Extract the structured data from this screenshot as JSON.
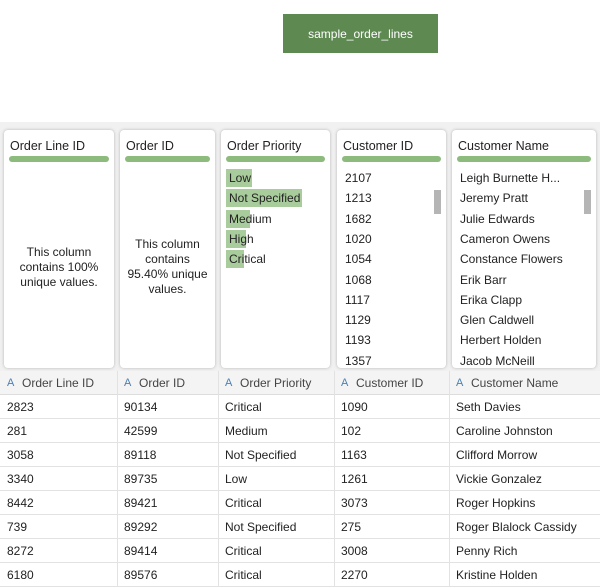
{
  "header": {
    "button": "sample_order_lines"
  },
  "profiles": [
    {
      "title": "Order Line ID",
      "text": "This column contains 100% unique values."
    },
    {
      "title": "Order ID",
      "text": "This column contains 95.40% unique values."
    },
    {
      "title": "Order Priority",
      "items": [
        "Low",
        "Not Specified",
        "Medium",
        "High",
        "Critical"
      ]
    },
    {
      "title": "Customer ID",
      "items": [
        "2107",
        "1213",
        "1682",
        "1020",
        "1054",
        "1068",
        "1117",
        "1129",
        "1193",
        "1357"
      ]
    },
    {
      "title": "Customer Name",
      "items": [
        "Leigh Burnette H...",
        "Jeremy Pratt",
        "Julie Edwards",
        "Cameron Owens",
        "Constance Flowers",
        "Erik Barr",
        "Erika Clapp",
        "Glen Caldwell",
        "Herbert Holden",
        "Jacob McNeill"
      ]
    }
  ],
  "table": {
    "columns": [
      {
        "type": "A",
        "name": "Order Line ID"
      },
      {
        "type": "A",
        "name": "Order ID"
      },
      {
        "type": "A",
        "name": "Order Priority"
      },
      {
        "type": "A",
        "name": "Customer ID"
      },
      {
        "type": "A",
        "name": "Customer Name"
      }
    ],
    "rows": [
      [
        "2823",
        "90134",
        "Critical",
        "1090",
        "Seth Davies"
      ],
      [
        "281",
        "42599",
        "Medium",
        "102",
        "Caroline Johnston"
      ],
      [
        "3058",
        "89118",
        "Not Specified",
        "1163",
        "Clifford Morrow"
      ],
      [
        "3340",
        "89735",
        "Low",
        "1261",
        "Vickie Gonzalez"
      ],
      [
        "8442",
        "89421",
        "Critical",
        "3073",
        "Roger Hopkins"
      ],
      [
        "739",
        "89292",
        "Not Specified",
        "275",
        "Roger Blalock Cassidy"
      ],
      [
        "8272",
        "89414",
        "Critical",
        "3008",
        "Penny Rich"
      ],
      [
        "6180",
        "89576",
        "Critical",
        "2270",
        "Kristine Holden"
      ]
    ]
  }
}
